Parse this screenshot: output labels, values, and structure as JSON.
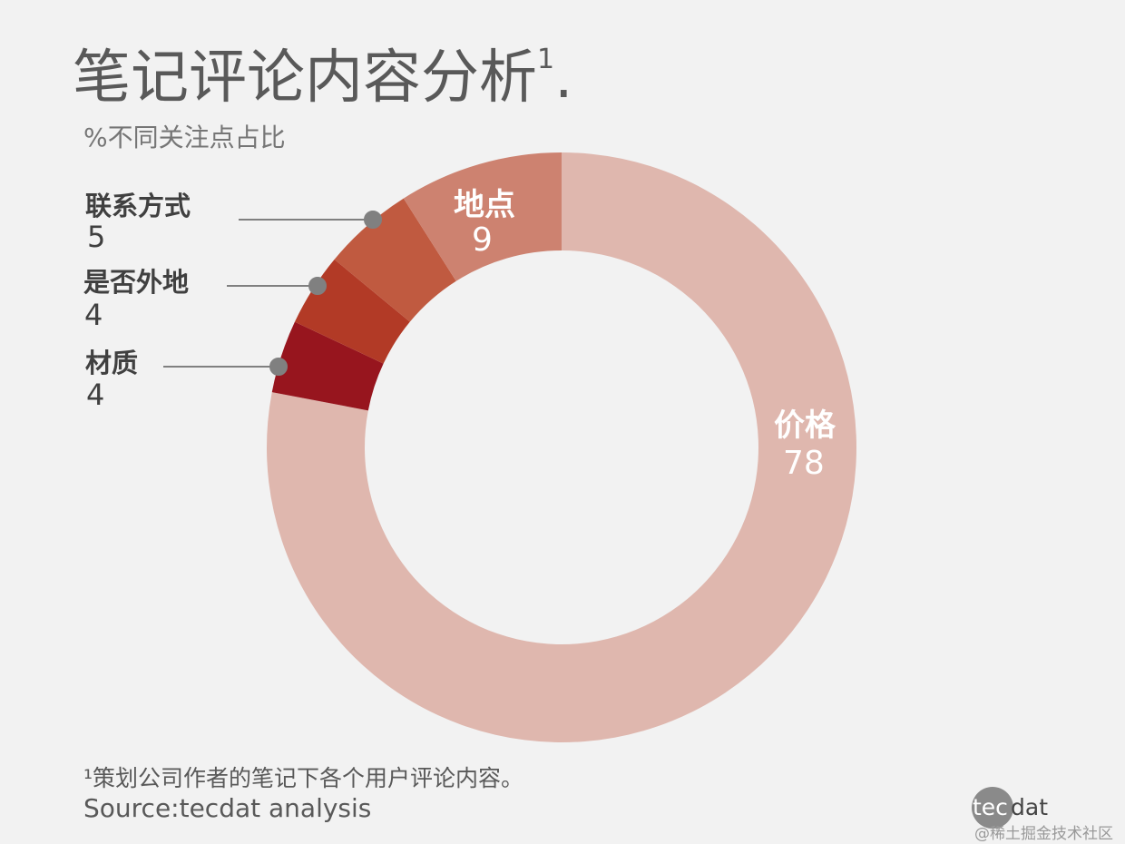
{
  "title": "笔记评论内容分析",
  "title_footnote_mark": "1",
  "title_suffix": ".",
  "footnote": "¹策划公司作者的笔记下各个用户评论内容。",
  "source": "Source:tecdat analysis",
  "logo": "tecdat",
  "watermark": "@稀土掘金技术社区",
  "chart_data": {
    "type": "pie",
    "variant": "donut",
    "title": "笔记评论内容分析",
    "subtitle": "%不同关注点占比",
    "start": "12 o'clock, clockwise",
    "slices": [
      {
        "label": "价格",
        "value": 78,
        "color": "#dfb7ae"
      },
      {
        "label": "材质",
        "value": 4,
        "color": "#97151e"
      },
      {
        "label": "是否外地",
        "value": 4,
        "color": "#b23a26"
      },
      {
        "label": "联系方式",
        "value": 5,
        "color": "#c05a40"
      },
      {
        "label": "地点",
        "value": 9,
        "color": "#cd8270"
      }
    ]
  }
}
